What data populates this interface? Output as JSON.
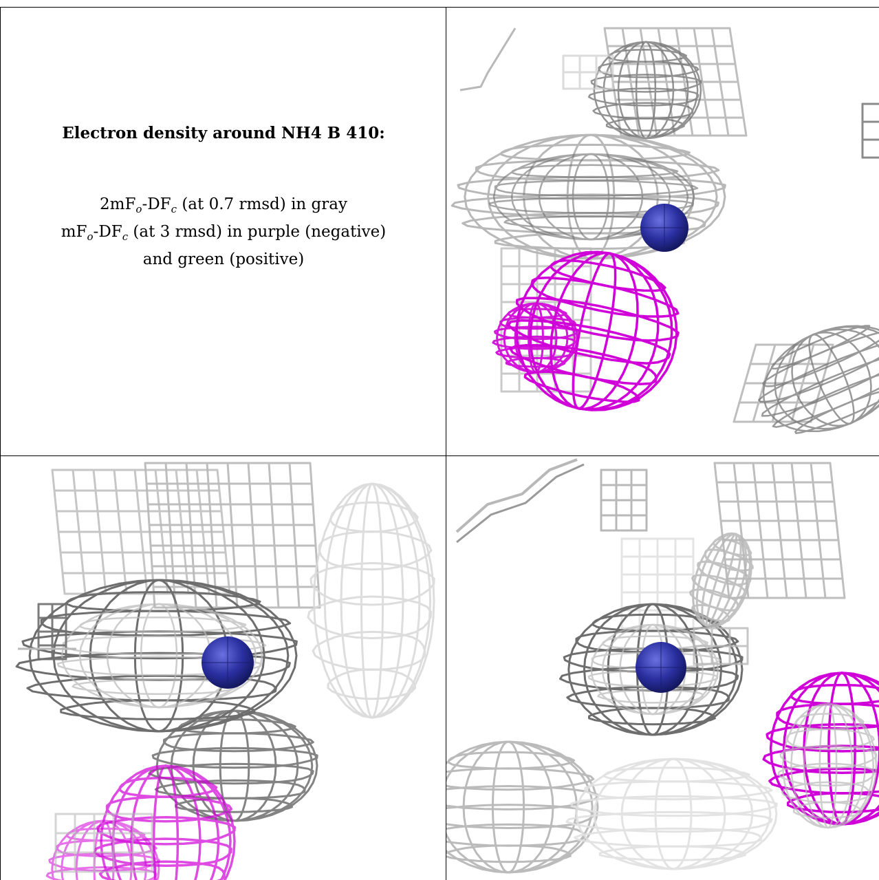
{
  "caption": {
    "title": "Electron density around NH4 B 410:",
    "line1_prefix": "2mF",
    "line1_o": "o",
    "line1_mid": "-DF",
    "line1_c": "c",
    "line1_suffix": " (at 0.7 rmsd) in gray",
    "line2_prefix": "mF",
    "line2_o": "o",
    "line2_mid": "-DF",
    "line2_c": "c",
    "line2_suffix": " (at 3 rmsd) in purple (negative)",
    "line3": "and green (positive)"
  },
  "colors": {
    "density_2fofc": "#b8b8b8",
    "density_2fofc_dark": "#6e6e6e",
    "density_fofc_negative": "#d000d8",
    "ammonium_sphere": "#2a2fa0",
    "border": "#000000"
  },
  "panels": [
    {
      "id": "view-1",
      "has_negative_density": true
    },
    {
      "id": "view-2",
      "has_negative_density": true
    },
    {
      "id": "view-3",
      "has_negative_density": true
    }
  ]
}
